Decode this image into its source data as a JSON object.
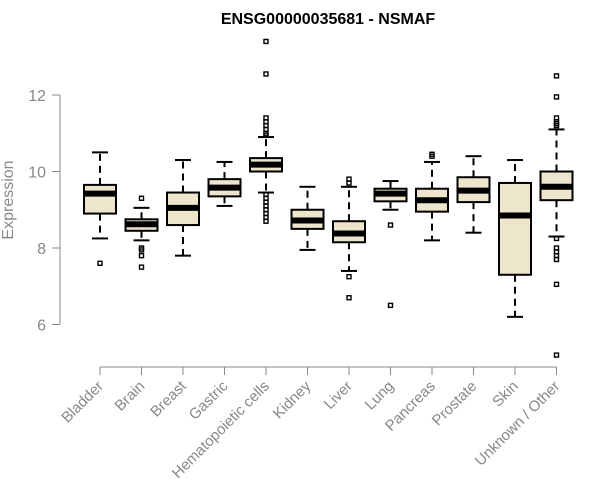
{
  "chart_data": {
    "type": "boxplot",
    "title": "ENSG00000035681 - NSMAF",
    "ylabel": "Expression",
    "xlabel": "",
    "ylim": [
      5.0,
      13.5
    ],
    "yticks": [
      6,
      8,
      10,
      12
    ],
    "grid": false,
    "colors": {
      "box_fill": "#ede5cc",
      "box_stroke": "#000000",
      "median": "#000000",
      "axis": "#888888",
      "text": "#888888"
    },
    "categories": [
      "Bladder",
      "Brain",
      "Breast",
      "Gastric",
      "Hematopoietic cells",
      "Kidney",
      "Liver",
      "Lung",
      "Pancreas",
      "Prostate",
      "Skin",
      "Unknown / Other"
    ],
    "boxes": [
      {
        "category": "Bladder",
        "whisker_low": 8.25,
        "q1": 8.9,
        "median": 9.42,
        "q3": 9.65,
        "whisker_high": 10.5,
        "outliers": [
          7.6
        ]
      },
      {
        "category": "Brain",
        "whisker_low": 8.2,
        "q1": 8.45,
        "median": 8.62,
        "q3": 8.75,
        "whisker_high": 9.05,
        "outliers": [
          7.5,
          7.8,
          7.95,
          8.0,
          9.3
        ]
      },
      {
        "category": "Breast",
        "whisker_low": 7.8,
        "q1": 8.6,
        "median": 9.05,
        "q3": 9.45,
        "whisker_high": 10.3,
        "outliers": []
      },
      {
        "category": "Gastric",
        "whisker_low": 9.1,
        "q1": 9.35,
        "median": 9.58,
        "q3": 9.8,
        "whisker_high": 10.25,
        "outliers": []
      },
      {
        "category": "Hematopoietic cells",
        "whisker_low": 9.45,
        "q1": 10.0,
        "median": 10.18,
        "q3": 10.35,
        "whisker_high": 10.9,
        "outliers": [
          13.4,
          12.55,
          11.4,
          11.3,
          11.2,
          11.1,
          11.0,
          10.95,
          9.4,
          9.3,
          9.2,
          9.1,
          9.0,
          8.9,
          8.8,
          8.7
        ]
      },
      {
        "category": "Kidney",
        "whisker_low": 7.95,
        "q1": 8.5,
        "median": 8.72,
        "q3": 9.0,
        "whisker_high": 9.6,
        "outliers": []
      },
      {
        "category": "Liver",
        "whisker_low": 7.4,
        "q1": 8.15,
        "median": 8.38,
        "q3": 8.7,
        "whisker_high": 9.6,
        "outliers": [
          9.8,
          9.7,
          7.25,
          6.7
        ]
      },
      {
        "category": "Lung",
        "whisker_low": 9.0,
        "q1": 9.22,
        "median": 9.42,
        "q3": 9.55,
        "whisker_high": 9.75,
        "outliers": [
          8.6,
          6.5
        ]
      },
      {
        "category": "Pancreas",
        "whisker_low": 8.2,
        "q1": 8.95,
        "median": 9.25,
        "q3": 9.55,
        "whisker_high": 10.25,
        "outliers": [
          10.4,
          10.45
        ]
      },
      {
        "category": "Prostate",
        "whisker_low": 8.4,
        "q1": 9.2,
        "median": 9.5,
        "q3": 9.85,
        "whisker_high": 10.4,
        "outliers": []
      },
      {
        "category": "Skin",
        "whisker_low": 6.2,
        "q1": 7.3,
        "median": 8.85,
        "q3": 9.7,
        "whisker_high": 10.3,
        "outliers": []
      },
      {
        "category": "Unknown / Other",
        "whisker_low": 8.3,
        "q1": 9.25,
        "median": 9.6,
        "q3": 10.0,
        "whisker_high": 11.1,
        "outliers": [
          12.5,
          11.95,
          11.4,
          11.3,
          11.25,
          11.2,
          8.25,
          8.0,
          7.9,
          7.8,
          7.7,
          7.05,
          5.2
        ]
      }
    ]
  }
}
